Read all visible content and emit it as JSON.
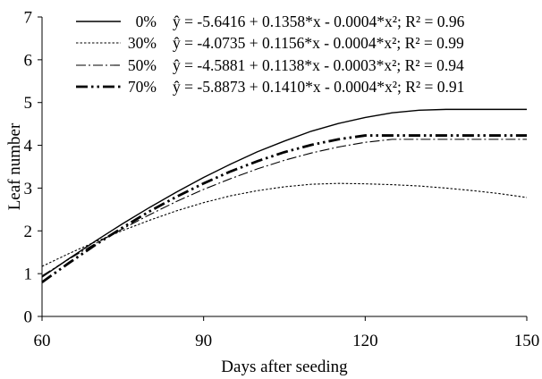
{
  "chart_data": {
    "type": "line",
    "title": "",
    "xlabel": "Days after seeding",
    "ylabel": "Leaf number",
    "xlim": [
      60,
      150
    ],
    "ylim": [
      0,
      7
    ],
    "xticks": [
      60,
      90,
      120,
      150
    ],
    "yticks": [
      0,
      1,
      2,
      3,
      4,
      5,
      6,
      7
    ],
    "grid": false,
    "legend_position": "top-left",
    "series": [
      {
        "name": "0%",
        "equation": "ŷ = -5.6416 + 0.1358*x - 0.0004*x²; R² = 0.96",
        "style": "solid",
        "coefficients": [
          -5.6416,
          0.1358,
          -0.0004
        ]
      },
      {
        "name": "30%",
        "equation": "ŷ = -4.0735 + 0.1156*x - 0.0004*x²; R² = 0.99",
        "style": "dotted",
        "coefficients": [
          -4.0735,
          0.1156,
          -0.0004
        ]
      },
      {
        "name": "50%",
        "equation": "ŷ = -4.5881 + 0.1138*x - 0.0003*x²; R² = 0.94",
        "style": "dash-dot",
        "coefficients": [
          -4.5881,
          0.1138,
          -0.0003
        ]
      },
      {
        "name": "70%",
        "equation": "ŷ = -5.8873 + 0.1410*x - 0.0004*x²; R² = 0.91",
        "style": "dash-dot-dot-thick",
        "coefficients": [
          -5.8873,
          0.141,
          -0.0004
        ]
      }
    ],
    "x": [
      60,
      65,
      70,
      75,
      80,
      85,
      90,
      95,
      100,
      105,
      110,
      115,
      120,
      125,
      130,
      135,
      140,
      145,
      150
    ],
    "curves": [
      {
        "name": "0%",
        "y": [
          0.92,
          1.35,
          1.77,
          2.17,
          2.55,
          2.91,
          3.25,
          3.56,
          3.85,
          4.1,
          4.33,
          4.51,
          4.65,
          4.76,
          4.82,
          4.84,
          4.84,
          4.84,
          4.84
        ]
      },
      {
        "name": "30%",
        "y": [
          1.17,
          1.47,
          1.75,
          2.01,
          2.25,
          2.47,
          2.66,
          2.82,
          2.94,
          3.03,
          3.09,
          3.11,
          3.1,
          3.08,
          3.05,
          3.0,
          2.94,
          2.87,
          2.78
        ]
      },
      {
        "name": "50%",
        "y": [
          0.95,
          1.34,
          1.71,
          2.05,
          2.38,
          2.69,
          2.97,
          3.22,
          3.45,
          3.65,
          3.82,
          3.96,
          4.07,
          4.14,
          4.14,
          4.14,
          4.14,
          4.14,
          4.14
        ]
      },
      {
        "name": "70%",
        "y": [
          0.8,
          1.25,
          1.68,
          2.08,
          2.46,
          2.8,
          3.11,
          3.39,
          3.63,
          3.84,
          4.01,
          4.14,
          4.23,
          4.23,
          4.23,
          4.23,
          4.23,
          4.23,
          4.23
        ]
      }
    ]
  }
}
